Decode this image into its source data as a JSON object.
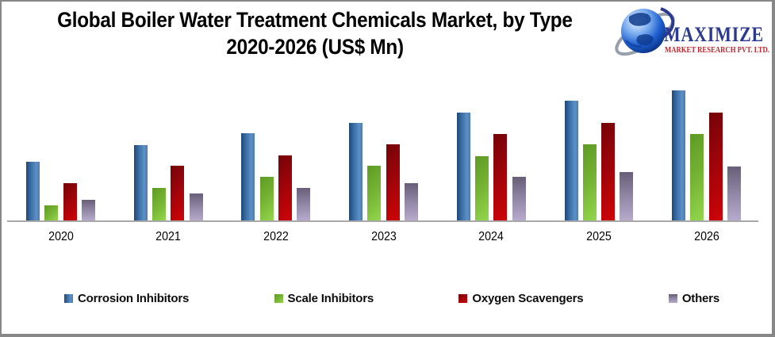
{
  "title": {
    "line1": "Global Boiler Water Treatment Chemicals Market, by Type",
    "line2": "2020-2026  (US$ Mn)"
  },
  "logo": {
    "name": "MAXIMIZE",
    "subtitle": "MARKET RESEARCH PVT. LTD.",
    "brand_blue": "#2b3990",
    "brand_red": "#c1272d"
  },
  "chart_data": {
    "type": "bar",
    "title": "Global Boiler Water Treatment Chemicals Market, by Type 2020-2026 (US$ Mn)",
    "categories": [
      "2020",
      "2021",
      "2022",
      "2023",
      "2024",
      "2025",
      "2026"
    ],
    "series": [
      {
        "name": "Corrosion Inhibitors",
        "color": "#3b6ea6",
        "values": [
          74,
          95,
          110,
          123,
          136,
          151,
          164
        ]
      },
      {
        "name": "Scale Inhibitors",
        "color": "#76b434",
        "values": [
          19,
          41,
          55,
          69,
          81,
          96,
          109
        ]
      },
      {
        "name": "Oxygen Scavengers",
        "color": "#b00307",
        "values": [
          47,
          69,
          82,
          96,
          109,
          123,
          136
        ]
      },
      {
        "name": "Others",
        "color": "#958aa9",
        "values": [
          26,
          34,
          41,
          47,
          55,
          61,
          68
        ]
      }
    ],
    "xlabel": "",
    "ylabel": "",
    "values_unit": "relative bar height (chart shows no y-axis scale or value labels)",
    "ylim": [
      0,
      185
    ],
    "grid": false,
    "legend_position": "bottom",
    "axis_baseline_color": "#a8a8a8"
  }
}
